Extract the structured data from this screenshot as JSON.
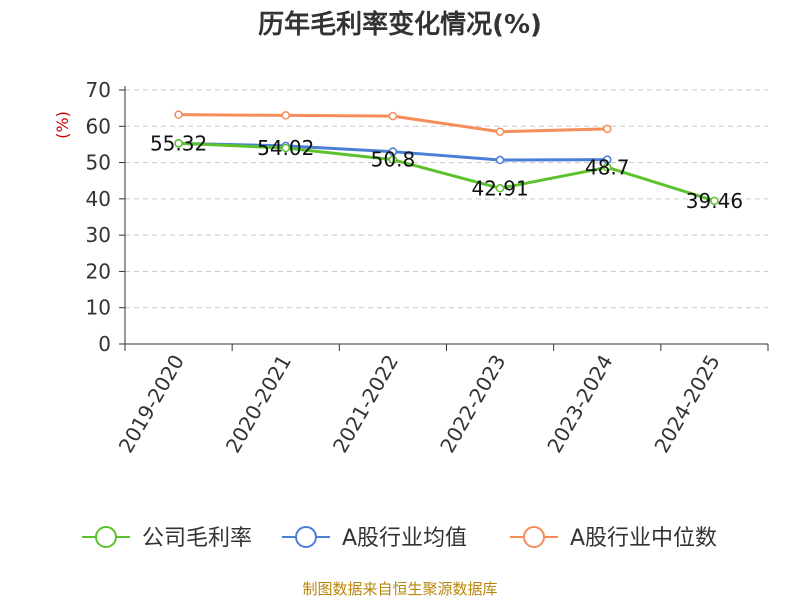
{
  "title": "历年毛利率变化情况(%)",
  "source": "制图数据来自恒生聚源数据库",
  "chart_data": {
    "type": "line",
    "title": "历年毛利率变化情况(%)",
    "ylabel": "(%)",
    "xlabel": "",
    "categories": [
      "2019-2020",
      "2020-2021",
      "2021-2022",
      "2022-2023",
      "2023-2024",
      "2024-2025"
    ],
    "ylim": [
      0,
      70
    ],
    "yticks": [
      0,
      10,
      20,
      30,
      40,
      50,
      60,
      70
    ],
    "grid": true,
    "legend_position": "bottom",
    "series": [
      {
        "name": "公司毛利率",
        "color": "#5cc22b",
        "values": [
          55.32,
          54.02,
          50.8,
          42.91,
          48.7,
          39.46
        ],
        "labels": [
          "55.32",
          "54.02",
          "50.8",
          "42.91",
          "48.7",
          "39.46"
        ]
      },
      {
        "name": "A股行业均值",
        "color": "#4a7fd8",
        "values": [
          55.3,
          54.6,
          53.0,
          50.7,
          50.8,
          null
        ]
      },
      {
        "name": "A股行业中位数",
        "color": "#f58d5a",
        "values": [
          63.2,
          63.0,
          62.8,
          58.5,
          59.3,
          null
        ]
      }
    ]
  }
}
